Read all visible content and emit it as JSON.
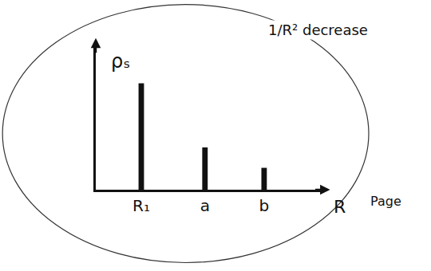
{
  "chart_data": {
    "type": "bar",
    "x_label": "R",
    "y_label": "ρₛ",
    "annotations": [
      "1/R² decrease",
      "Page"
    ],
    "x": [
      1,
      2.4,
      3.7
    ],
    "values": [
      7.3,
      2.9,
      1.5
    ],
    "color": "#111111",
    "xlim": [
      0,
      5
    ],
    "xticks": [
      {
        "value": 1,
        "label": "R₁"
      },
      {
        "value": 2.4,
        "label": "a"
      },
      {
        "value": 3.7,
        "label": "b"
      }
    ],
    "ylim": [
      0,
      10
    ],
    "yticks": [],
    "grid": false,
    "tick_labels": "x"
  }
}
